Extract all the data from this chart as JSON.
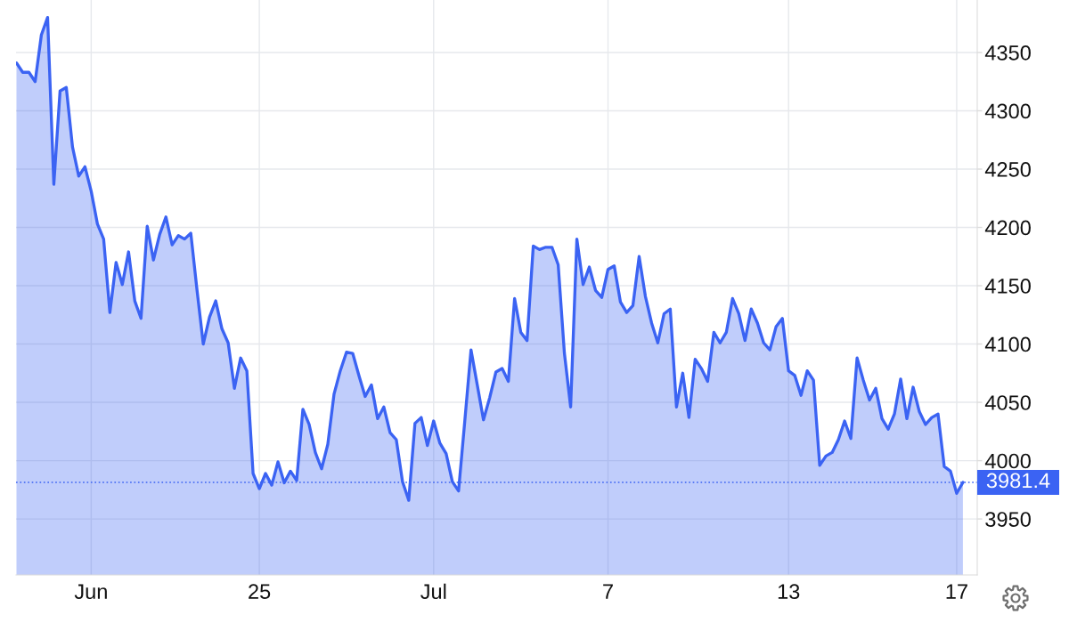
{
  "chart_data": {
    "type": "area",
    "categories": [
      null,
      null,
      null,
      null,
      null,
      null,
      null,
      null,
      null,
      null,
      null,
      null,
      "Jun",
      null,
      null,
      null,
      null,
      null,
      null,
      null,
      null,
      null,
      null,
      null,
      null,
      null,
      null,
      null,
      null,
      null,
      null,
      null,
      null,
      null,
      null,
      null,
      null,
      null,
      null,
      "25",
      null,
      null,
      null,
      null,
      null,
      null,
      null,
      null,
      null,
      null,
      null,
      null,
      null,
      null,
      null,
      null,
      null,
      null,
      null,
      null,
      null,
      null,
      null,
      null,
      null,
      null,
      null,
      "Jul",
      null,
      null,
      null,
      null,
      null,
      null,
      null,
      null,
      null,
      null,
      null,
      null,
      null,
      null,
      null,
      null,
      null,
      null,
      null,
      null,
      null,
      null,
      null,
      null,
      null,
      null,
      null,
      "7",
      null,
      null,
      null,
      null,
      null,
      null,
      null,
      null,
      null,
      null,
      null,
      null,
      null,
      null,
      null,
      null,
      null,
      null,
      null,
      null,
      null,
      null,
      null,
      null,
      null,
      null,
      null,
      null,
      "13",
      null,
      null,
      null,
      null,
      null,
      null,
      null,
      null,
      null,
      null,
      null,
      null,
      null,
      null,
      null,
      null,
      null,
      null,
      null,
      null,
      null,
      null,
      null,
      null,
      null,
      null,
      "17",
      null
    ],
    "series": [
      {
        "color": "#3b63f3",
        "values": [
          4341,
          4333,
          4333,
          4325,
          4365,
          4380,
          4237,
          4317,
          4320,
          4269,
          4244,
          4252,
          4231,
          4203,
          4190,
          4127,
          4170,
          4151,
          4179,
          4137,
          4122,
          4201,
          4172,
          4194,
          4209,
          4185,
          4193,
          4190,
          4195,
          4146,
          4100,
          4123,
          4137,
          4113,
          4101,
          4062,
          4088,
          4077,
          3989,
          3976,
          3989,
          3979,
          3999,
          3981,
          3991,
          3983,
          4044,
          4031,
          4007,
          3993,
          4014,
          4057,
          4077,
          4093,
          4092,
          4073,
          4055,
          4065,
          4036,
          4046,
          4024,
          4018,
          3982,
          3966,
          4032,
          4037,
          4013,
          4034,
          4015,
          4006,
          3982,
          3974,
          4034,
          4095,
          4065,
          4035,
          4054,
          4076,
          4079,
          4068,
          4139,
          4110,
          4103,
          4184,
          4181,
          4183,
          4183,
          4168,
          4092,
          4046,
          4190,
          4151,
          4166,
          4146,
          4140,
          4164,
          4167,
          4136,
          4127,
          4133,
          4175,
          4141,
          4118,
          4101,
          4126,
          4130,
          4046,
          4075,
          4037,
          4087,
          4079,
          4068,
          4110,
          4101,
          4110,
          4139,
          4126,
          4103,
          4130,
          4118,
          4101,
          4095,
          4115,
          4122,
          4077,
          4073,
          4056,
          4077,
          4069,
          3996,
          4004,
          4007,
          4018,
          4034,
          4019,
          4088,
          4069,
          4052,
          4062,
          4036,
          4027,
          4040,
          4070,
          4036,
          4063,
          4042,
          4031,
          4037,
          4040,
          3995,
          3991,
          3972,
          3981.4
        ]
      }
    ],
    "ylim": [
      3902,
      4395
    ],
    "yticks": [
      3950,
      4000,
      4050,
      4100,
      4150,
      4200,
      4250,
      4300,
      4350
    ],
    "ref_lines": [
      {
        "axis": "y",
        "value": 3981.4,
        "label": "3981.4",
        "color": "#3b63f3",
        "line_style": "dotted"
      }
    ],
    "grid": true,
    "marker": "none",
    "line_style": "solid"
  }
}
